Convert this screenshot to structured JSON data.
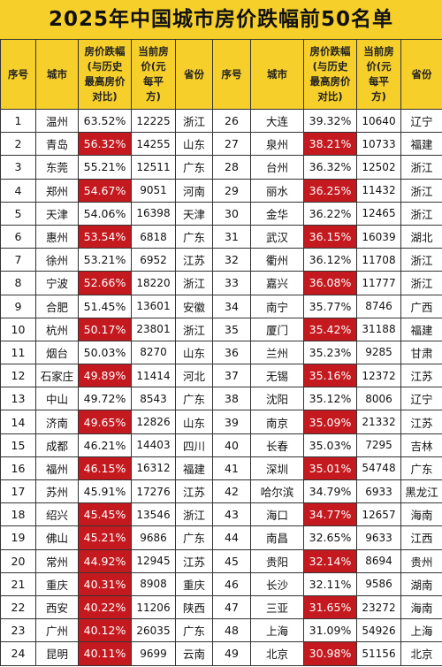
{
  "title": "2025年中国城市房价跌幅前50名单",
  "table": {
    "header": [
      "序号",
      "城市",
      "房价跌幅(与历史最高房价对比)",
      "当前房价(元每平方)",
      "省份",
      "序号",
      "城市",
      "房价跌幅(与历史最高房价对比)",
      "当前房价(元每平方)",
      "省份"
    ],
    "rows": [
      [
        "1",
        "温州",
        "63.52%",
        "12225",
        "浙江",
        "26",
        "大连",
        "39.32%",
        "10640",
        "辽宁"
      ],
      [
        "2",
        "青岛",
        "56.32%",
        "14255",
        "山东",
        "27",
        "泉州",
        "38.21%",
        "10733",
        "福建"
      ],
      [
        "3",
        "东莞",
        "55.21%",
        "12511",
        "广东",
        "28",
        "台州",
        "36.32%",
        "12502",
        "浙江"
      ],
      [
        "4",
        "郑州",
        "54.67%",
        "9051",
        "河南",
        "29",
        "丽水",
        "36.25%",
        "11432",
        "浙江"
      ],
      [
        "5",
        "天津",
        "54.06%",
        "16398",
        "天津",
        "30",
        "金华",
        "36.22%",
        "12465",
        "浙江"
      ],
      [
        "6",
        "惠州",
        "53.54%",
        "6818",
        "广东",
        "31",
        "武汉",
        "36.15%",
        "16039",
        "湖北"
      ],
      [
        "7",
        "徐州",
        "53.21%",
        "6952",
        "江苏",
        "32",
        "衢州",
        "36.12%",
        "11708",
        "浙江"
      ],
      [
        "8",
        "宁波",
        "52.66%",
        "18220",
        "浙江",
        "33",
        "嘉兴",
        "36.08%",
        "11777",
        "浙江"
      ],
      [
        "9",
        "合肥",
        "51.45%",
        "13601",
        "安徽",
        "34",
        "南宁",
        "35.77%",
        "8746",
        "广西"
      ],
      [
        "10",
        "杭州",
        "50.17%",
        "23801",
        "浙江",
        "35",
        "厦门",
        "35.42%",
        "31188",
        "福建"
      ],
      [
        "11",
        "烟台",
        "50.03%",
        "8270",
        "山东",
        "36",
        "兰州",
        "35.23%",
        "9285",
        "甘肃"
      ],
      [
        "12",
        "石家庄",
        "49.89%",
        "11414",
        "河北",
        "37",
        "无锡",
        "35.16%",
        "12372",
        "江苏"
      ],
      [
        "13",
        "中山",
        "49.72%",
        "8543",
        "广东",
        "38",
        "沈阳",
        "35.12%",
        "8006",
        "辽宁"
      ],
      [
        "14",
        "济南",
        "49.65%",
        "12826",
        "山东",
        "39",
        "南京",
        "35.09%",
        "21332",
        "江苏"
      ],
      [
        "15",
        "成都",
        "46.21%",
        "14403",
        "四川",
        "40",
        "长春",
        "35.03%",
        "7295",
        "吉林"
      ],
      [
        "16",
        "福州",
        "46.15%",
        "16312",
        "福建",
        "41",
        "深圳",
        "35.01%",
        "54748",
        "广东"
      ],
      [
        "17",
        "苏州",
        "45.91%",
        "17276",
        "江苏",
        "42",
        "哈尔滨",
        "34.79%",
        "6933",
        "黑龙江"
      ],
      [
        "18",
        "绍兴",
        "45.45%",
        "13546",
        "浙江",
        "43",
        "海口",
        "34.77%",
        "12657",
        "海南"
      ],
      [
        "19",
        "佛山",
        "45.21%",
        "9686",
        "广东",
        "44",
        "南昌",
        "32.65%",
        "9633",
        "江西"
      ],
      [
        "20",
        "常州",
        "44.92%",
        "12945",
        "江苏",
        "45",
        "贵阳",
        "32.14%",
        "8694",
        "贵州"
      ],
      [
        "21",
        "重庆",
        "40.31%",
        "8908",
        "重庆",
        "46",
        "长沙",
        "32.11%",
        "9586",
        "湖南"
      ],
      [
        "22",
        "西安",
        "40.22%",
        "11206",
        "陕西",
        "47",
        "三亚",
        "31.65%",
        "23272",
        "海南"
      ],
      [
        "23",
        "广州",
        "40.12%",
        "26035",
        "广东",
        "48",
        "上海",
        "31.09%",
        "54926",
        "上海"
      ],
      [
        "24",
        "昆明",
        "40.11%",
        "9699",
        "云南",
        "49",
        "北京",
        "30.98%",
        "51156",
        "北京"
      ]
    ]
  }
}
